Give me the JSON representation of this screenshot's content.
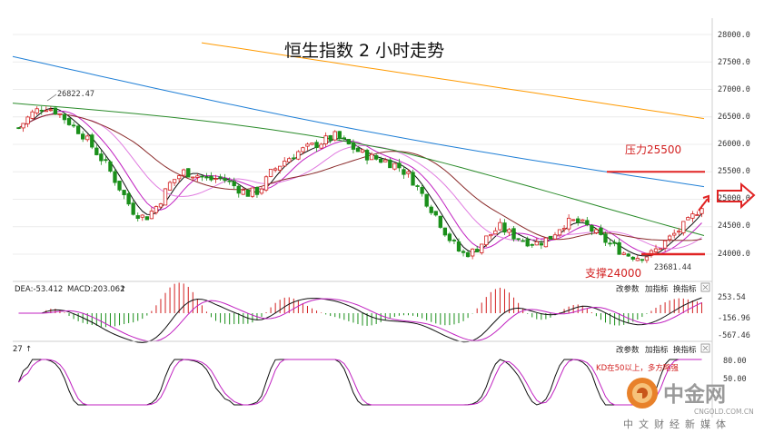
{
  "chart_data": [
    {
      "type": "candlestick",
      "title": "恒生指数 2 小时走势",
      "y_ticks": [
        "28000.0",
        "27500.0",
        "27000.0",
        "26500.0",
        "26000.0",
        "25500.0",
        "25000.0",
        "24500.0",
        "24000.0"
      ],
      "ylim": [
        23700,
        28100
      ],
      "grid": true,
      "price_path": [
        26300,
        26550,
        26700,
        26600,
        26400,
        26200,
        25900,
        25600,
        25200,
        24800,
        24650,
        24900,
        25300,
        25500,
        25450,
        25350,
        25400,
        25250,
        25100,
        25150,
        25500,
        25700,
        25850,
        25950,
        26050,
        26150,
        26000,
        25850,
        25750,
        25700,
        25600,
        25400,
        25050,
        24700,
        24300,
        24000,
        24050,
        24300,
        24500,
        24350,
        24250,
        24200,
        24300,
        24550,
        24600,
        24500,
        24300,
        24150,
        24000,
        23950,
        24000,
        24200,
        24400,
        24600,
        24900
      ],
      "ma_series": [
        {
          "color": "#ff9a00",
          "start": 27850,
          "end": 26470
        },
        {
          "color": "#1f7fd6",
          "start": 27600,
          "end": 25230
        },
        {
          "color": "#2a8b2a",
          "start": 26750,
          "end": 24800
        }
      ],
      "annotations": {
        "high_label": "26822.47",
        "low_label": "23681.44",
        "resistance_label": "压力25500",
        "resistance_value": 25500,
        "support_label": "支撑24000",
        "support_value": 24000
      }
    },
    {
      "type": "macd",
      "labels": [
        "DEA:-53.412",
        "MACD:203.062"
      ],
      "y_ticks": [
        "253.54",
        "-156.96",
        "-567.46"
      ],
      "buttons": [
        "改参数",
        "加指标",
        "换指标"
      ]
    },
    {
      "type": "kdj",
      "label_prefix": "27",
      "y_ticks": [
        "80.00",
        "50.00"
      ],
      "buttons": [
        "改参数",
        "加指标",
        "换指标"
      ],
      "note": "KD在50以上，多方略强"
    }
  ],
  "watermark": {
    "brand": "中金网",
    "url": "CNGOLD.COM.CN",
    "tagline": "中文财经新媒体"
  }
}
